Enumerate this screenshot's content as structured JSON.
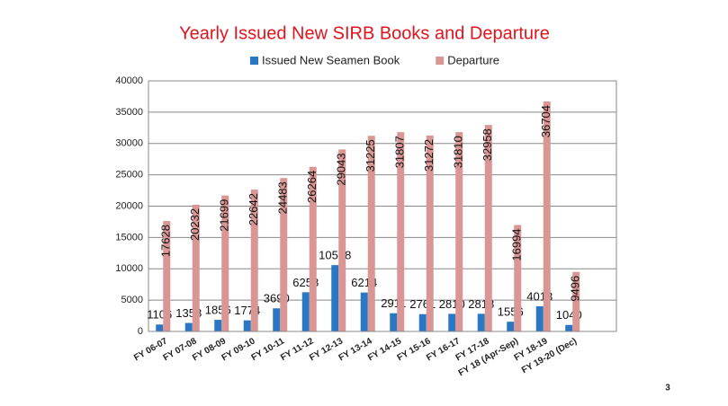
{
  "chart_data": {
    "type": "bar",
    "title": "Yearly Issued New SIRB Books and Departure",
    "categories": [
      "FY 06-07",
      "FY 07-08",
      "FY 08-09",
      "FY 09-10",
      "FY 10-11",
      "FY 11-12",
      "FY 12-13",
      "FY 13-14",
      "FY 14-15",
      "FY 15-16",
      "FY 16-17",
      "FY 17-18",
      "FY 18 (Apr-Sep)",
      "FY 18-19",
      "FY 19-20 (Dec)",
      null
    ],
    "series": [
      {
        "name": "Issued New Seamen Book",
        "color": "#2a78c4",
        "values": [
          1106,
          1358,
          1856,
          1774,
          3690,
          6258,
          10588,
          6214,
          2911,
          2761,
          2810,
          2818,
          1556,
          4013,
          1040,
          null
        ]
      },
      {
        "name": "Departure",
        "color": "#d99694",
        "values": [
          17628,
          20232,
          21699,
          22642,
          24483,
          26264,
          29043,
          31225,
          31807,
          31272,
          31810,
          32958,
          16994,
          36704,
          9496,
          null
        ]
      }
    ],
    "ylim": [
      0,
      40000
    ],
    "yticks": [
      0,
      5000,
      10000,
      15000,
      20000,
      25000,
      30000,
      35000,
      40000
    ],
    "grid": true,
    "legend": "top"
  },
  "page_number": "3"
}
